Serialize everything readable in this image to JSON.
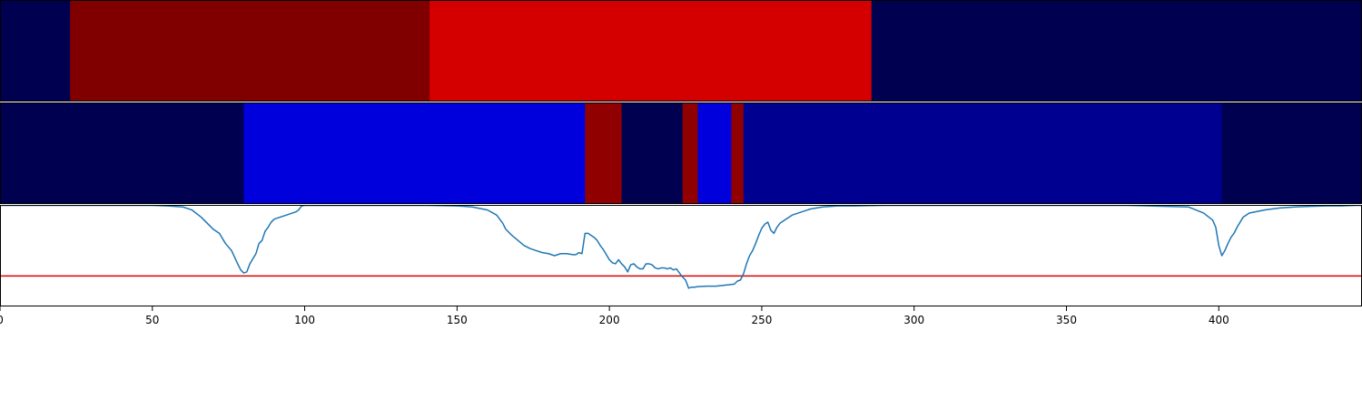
{
  "chart_data": {
    "type": "heatmap",
    "title": "",
    "xlabel": "",
    "ylabel": "",
    "xlim": [
      0,
      447
    ],
    "x_ticks": [
      0,
      50,
      100,
      150,
      200,
      250,
      300,
      350,
      400
    ],
    "x_tick_labels": [
      "0",
      "50",
      "100",
      "150",
      "200",
      "250",
      "300",
      "350",
      "400"
    ],
    "grid": false,
    "legend": "none",
    "tracks": [
      {
        "kind": "segments",
        "segments": [
          {
            "start": 0,
            "end": 23,
            "color": "#000050"
          },
          {
            "start": 23,
            "end": 141,
            "color": "#800000"
          },
          {
            "start": 141,
            "end": 286,
            "color": "#d40000"
          },
          {
            "start": 286,
            "end": 447,
            "color": "#000050"
          }
        ]
      },
      {
        "kind": "segments",
        "segments": [
          {
            "start": 0,
            "end": 80,
            "color": "#000050"
          },
          {
            "start": 80,
            "end": 192,
            "color": "#0000dd"
          },
          {
            "start": 192,
            "end": 204,
            "color": "#900000"
          },
          {
            "start": 204,
            "end": 224,
            "color": "#000050"
          },
          {
            "start": 224,
            "end": 229,
            "color": "#900000"
          },
          {
            "start": 229,
            "end": 240,
            "color": "#0000dd"
          },
          {
            "start": 240,
            "end": 244,
            "color": "#900000"
          },
          {
            "start": 244,
            "end": 401,
            "color": "#000090"
          },
          {
            "start": 401,
            "end": 447,
            "color": "#000050"
          }
        ]
      },
      {
        "kind": "line",
        "ylim": [
          0,
          1
        ],
        "series_color": "#1f77b4",
        "threshold": {
          "y": 0.3,
          "color": "#dd0000"
        },
        "x": [
          0,
          10,
          20,
          30,
          40,
          50,
          55,
          60,
          63,
          66,
          68,
          70,
          72,
          74,
          76,
          78,
          79,
          80,
          81,
          82,
          83,
          84,
          85,
          86,
          87,
          88,
          89,
          90,
          91,
          92,
          93,
          94,
          95,
          96,
          97,
          98,
          99,
          100,
          120,
          140,
          150,
          155,
          160,
          163,
          165,
          166,
          168,
          170,
          172,
          174,
          176,
          178,
          180,
          182,
          184,
          186,
          188,
          189,
          190,
          191,
          192,
          193,
          194,
          195,
          196,
          197,
          198,
          199,
          200,
          201,
          202,
          203,
          204,
          205,
          206,
          207,
          208,
          209,
          210,
          211,
          212,
          213,
          214,
          215,
          216,
          217,
          218,
          219,
          220,
          221,
          222,
          223,
          224,
          225,
          226,
          227,
          228,
          229,
          232,
          235,
          238,
          241,
          242,
          243,
          244,
          245,
          246,
          247,
          248,
          249,
          250,
          251,
          252,
          253,
          254,
          255,
          256,
          258,
          260,
          263,
          266,
          270,
          275,
          280,
          290,
          310,
          330,
          350,
          370,
          390,
          395,
          398,
          399,
          400,
          401,
          402,
          403,
          404,
          405,
          406,
          408,
          410,
          415,
          420,
          425,
          430,
          435,
          440,
          445,
          447
        ],
        "y": [
          0.995,
          0.995,
          0.995,
          0.995,
          0.995,
          0.995,
          0.99,
          0.98,
          0.95,
          0.88,
          0.82,
          0.76,
          0.72,
          0.62,
          0.55,
          0.42,
          0.36,
          0.33,
          0.34,
          0.42,
          0.47,
          0.52,
          0.62,
          0.65,
          0.74,
          0.78,
          0.83,
          0.86,
          0.87,
          0.88,
          0.89,
          0.9,
          0.91,
          0.92,
          0.93,
          0.95,
          0.99,
          0.995,
          0.995,
          0.995,
          0.99,
          0.98,
          0.95,
          0.9,
          0.82,
          0.76,
          0.7,
          0.65,
          0.6,
          0.57,
          0.55,
          0.53,
          0.52,
          0.5,
          0.52,
          0.52,
          0.51,
          0.51,
          0.53,
          0.52,
          0.72,
          0.72,
          0.7,
          0.68,
          0.65,
          0.6,
          0.56,
          0.51,
          0.46,
          0.43,
          0.42,
          0.46,
          0.42,
          0.39,
          0.34,
          0.41,
          0.42,
          0.39,
          0.37,
          0.37,
          0.42,
          0.42,
          0.41,
          0.38,
          0.37,
          0.38,
          0.38,
          0.37,
          0.38,
          0.36,
          0.37,
          0.33,
          0.29,
          0.26,
          0.18,
          0.19,
          0.19,
          0.195,
          0.2,
          0.2,
          0.21,
          0.22,
          0.25,
          0.26,
          0.32,
          0.42,
          0.5,
          0.55,
          0.62,
          0.7,
          0.77,
          0.81,
          0.83,
          0.75,
          0.72,
          0.78,
          0.82,
          0.86,
          0.9,
          0.93,
          0.96,
          0.98,
          0.99,
          0.99,
          0.995,
          0.995,
          0.995,
          0.995,
          0.995,
          0.98,
          0.92,
          0.85,
          0.78,
          0.6,
          0.5,
          0.55,
          0.62,
          0.68,
          0.72,
          0.78,
          0.88,
          0.92,
          0.95,
          0.97,
          0.98,
          0.985,
          0.99,
          0.99,
          0.995,
          0.995
        ]
      }
    ]
  }
}
